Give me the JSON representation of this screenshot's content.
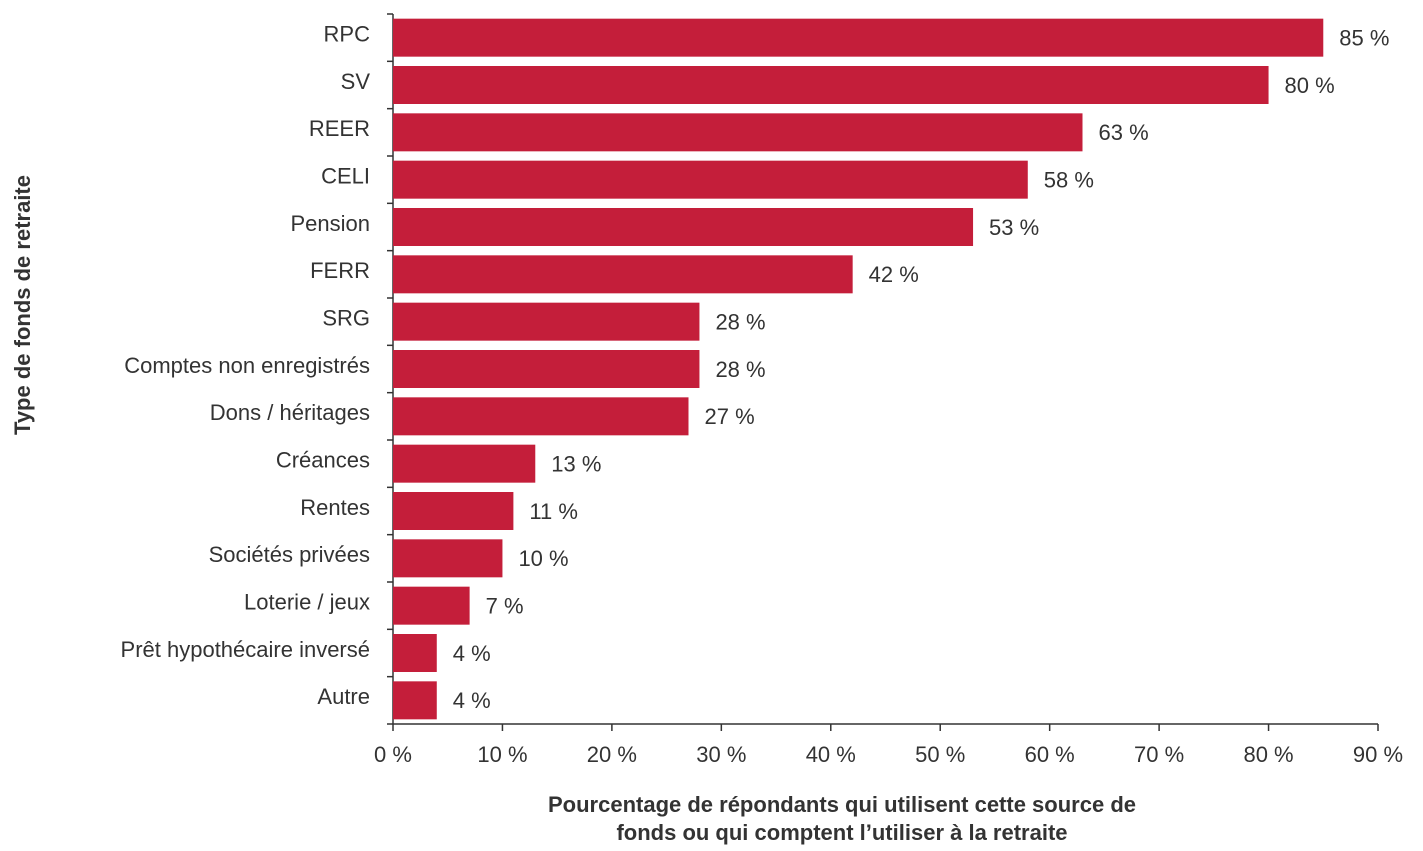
{
  "chart_data": {
    "type": "barh",
    "ylabel": "Type de fonds de retraite",
    "xlabel": [
      "Pourcentage de répondants qui utilisent cette source de",
      "fonds ou qui comptent l’utiliser à la retraite"
    ],
    "categories": [
      "RPC",
      "SV",
      "REER",
      "CELI",
      "Pension",
      "FERR",
      "SRG",
      "Comptes non enregistrés",
      "Dons / héritages",
      "Créances",
      "Rentes",
      "Sociétés privées",
      "Loterie / jeux",
      "Prêt hypothécaire inversé",
      "Autre"
    ],
    "values": [
      85,
      80,
      63,
      58,
      53,
      42,
      28,
      28,
      27,
      13,
      11,
      10,
      7,
      4,
      4
    ],
    "value_labels": [
      "85 %",
      "80 %",
      "63 %",
      "58 %",
      "53 %",
      "42 %",
      "28 %",
      "28 %",
      "27 %",
      "13 %",
      "11 %",
      "10 %",
      "7 %",
      "4 %",
      "4 %"
    ],
    "color": "#c41e3a",
    "xlim": [
      0,
      90
    ],
    "xticks": [
      {
        "value": 0,
        "label": "0 %"
      },
      {
        "value": 10,
        "label": "10 %"
      },
      {
        "value": 20,
        "label": "20 %"
      },
      {
        "value": 30,
        "label": "30 %"
      },
      {
        "value": 40,
        "label": "40 %"
      },
      {
        "value": 50,
        "label": "50 %"
      },
      {
        "value": 60,
        "label": "60 %"
      },
      {
        "value": 70,
        "label": "70 %"
      },
      {
        "value": 80,
        "label": "80 %"
      },
      {
        "value": 90,
        "label": "90 %"
      }
    ],
    "grid": false
  }
}
